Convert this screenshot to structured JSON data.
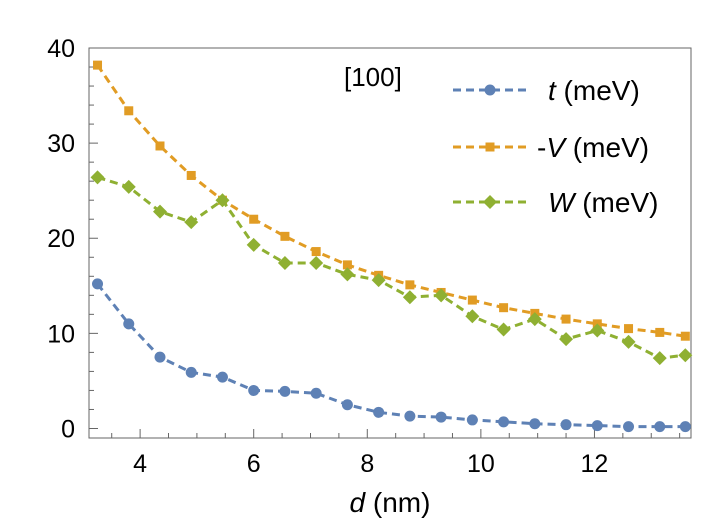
{
  "chart_data": {
    "type": "line",
    "title": "",
    "annotation": "[100]",
    "xlabel_var": "d",
    "xlabel_unit": " (nm)",
    "ylabel": "",
    "xlim": [
      3.1,
      13.7
    ],
    "ylim": [
      -1,
      40
    ],
    "xticks": [
      4,
      6,
      8,
      10,
      12
    ],
    "yticks": [
      0,
      10,
      20,
      30,
      40
    ],
    "x": [
      3.25,
      3.8,
      4.35,
      4.9,
      5.45,
      6.0,
      6.55,
      7.1,
      7.65,
      8.2,
      8.75,
      9.3,
      9.85,
      10.4,
      10.95,
      11.5,
      12.05,
      12.6,
      13.15,
      13.6
    ],
    "series": [
      {
        "name": "t",
        "legend_var": "t",
        "legend_prefix": "",
        "legend_unit": " (meV)",
        "color": "#5e81b5",
        "marker": "circle",
        "values": [
          15.2,
          11.0,
          7.5,
          5.9,
          5.4,
          4.0,
          3.9,
          3.7,
          2.5,
          1.7,
          1.3,
          1.2,
          0.9,
          0.7,
          0.5,
          0.4,
          0.3,
          0.2,
          0.2,
          0.2
        ]
      },
      {
        "name": "-V",
        "legend_var": "V",
        "legend_prefix": "-",
        "legend_unit": " (meV)",
        "color": "#e19c24",
        "marker": "square",
        "values": [
          38.2,
          33.4,
          29.7,
          26.6,
          24.0,
          22.0,
          20.2,
          18.6,
          17.2,
          16.1,
          15.1,
          14.3,
          13.5,
          12.7,
          12.1,
          11.5,
          11.0,
          10.5,
          10.1,
          9.7
        ]
      },
      {
        "name": "W",
        "legend_var": "W",
        "legend_prefix": "",
        "legend_unit": " (meV)",
        "color": "#8fb032",
        "marker": "diamond",
        "values": [
          26.4,
          25.4,
          22.8,
          21.7,
          24.0,
          19.3,
          17.4,
          17.4,
          16.2,
          15.6,
          13.8,
          14.0,
          11.8,
          10.4,
          11.5,
          9.4,
          10.3,
          9.1,
          7.4,
          7.7
        ]
      }
    ]
  }
}
